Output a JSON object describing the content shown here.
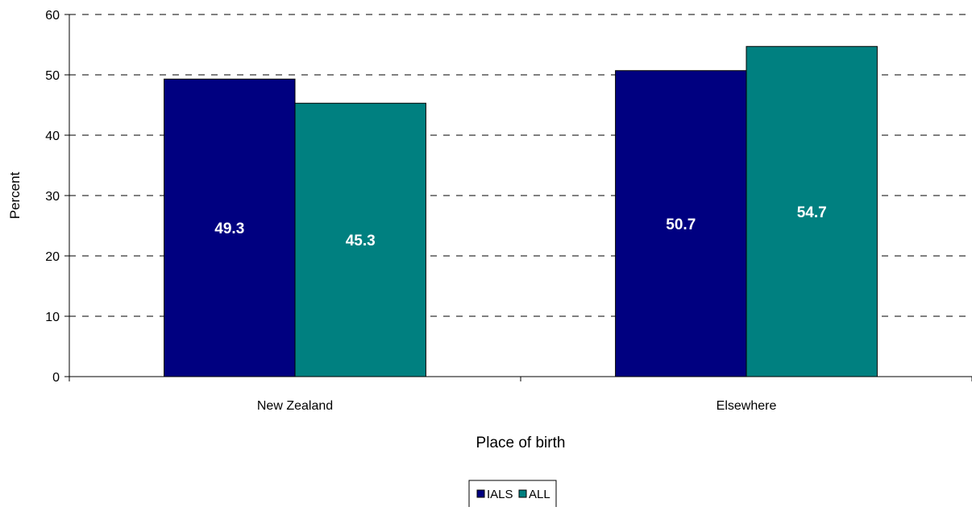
{
  "chart_data": {
    "type": "bar",
    "title": "",
    "xlabel": "Place of birth",
    "ylabel": "Percent",
    "categories": [
      "New Zealand",
      "Elsewhere"
    ],
    "ylim": [
      0,
      60
    ],
    "yticks": [
      0,
      10,
      20,
      30,
      40,
      50,
      60
    ],
    "grid": true,
    "grid_style": "dashed",
    "legend_position": "bottom-center",
    "series": [
      {
        "name": "IALS",
        "color": "#000080",
        "values": [
          49.3,
          50.7
        ],
        "labels": [
          "49.3",
          "50.7"
        ]
      },
      {
        "name": "ALL",
        "color": "#008080",
        "values": [
          45.3,
          54.7
        ],
        "labels": [
          "45.3",
          "54.7"
        ]
      }
    ]
  }
}
